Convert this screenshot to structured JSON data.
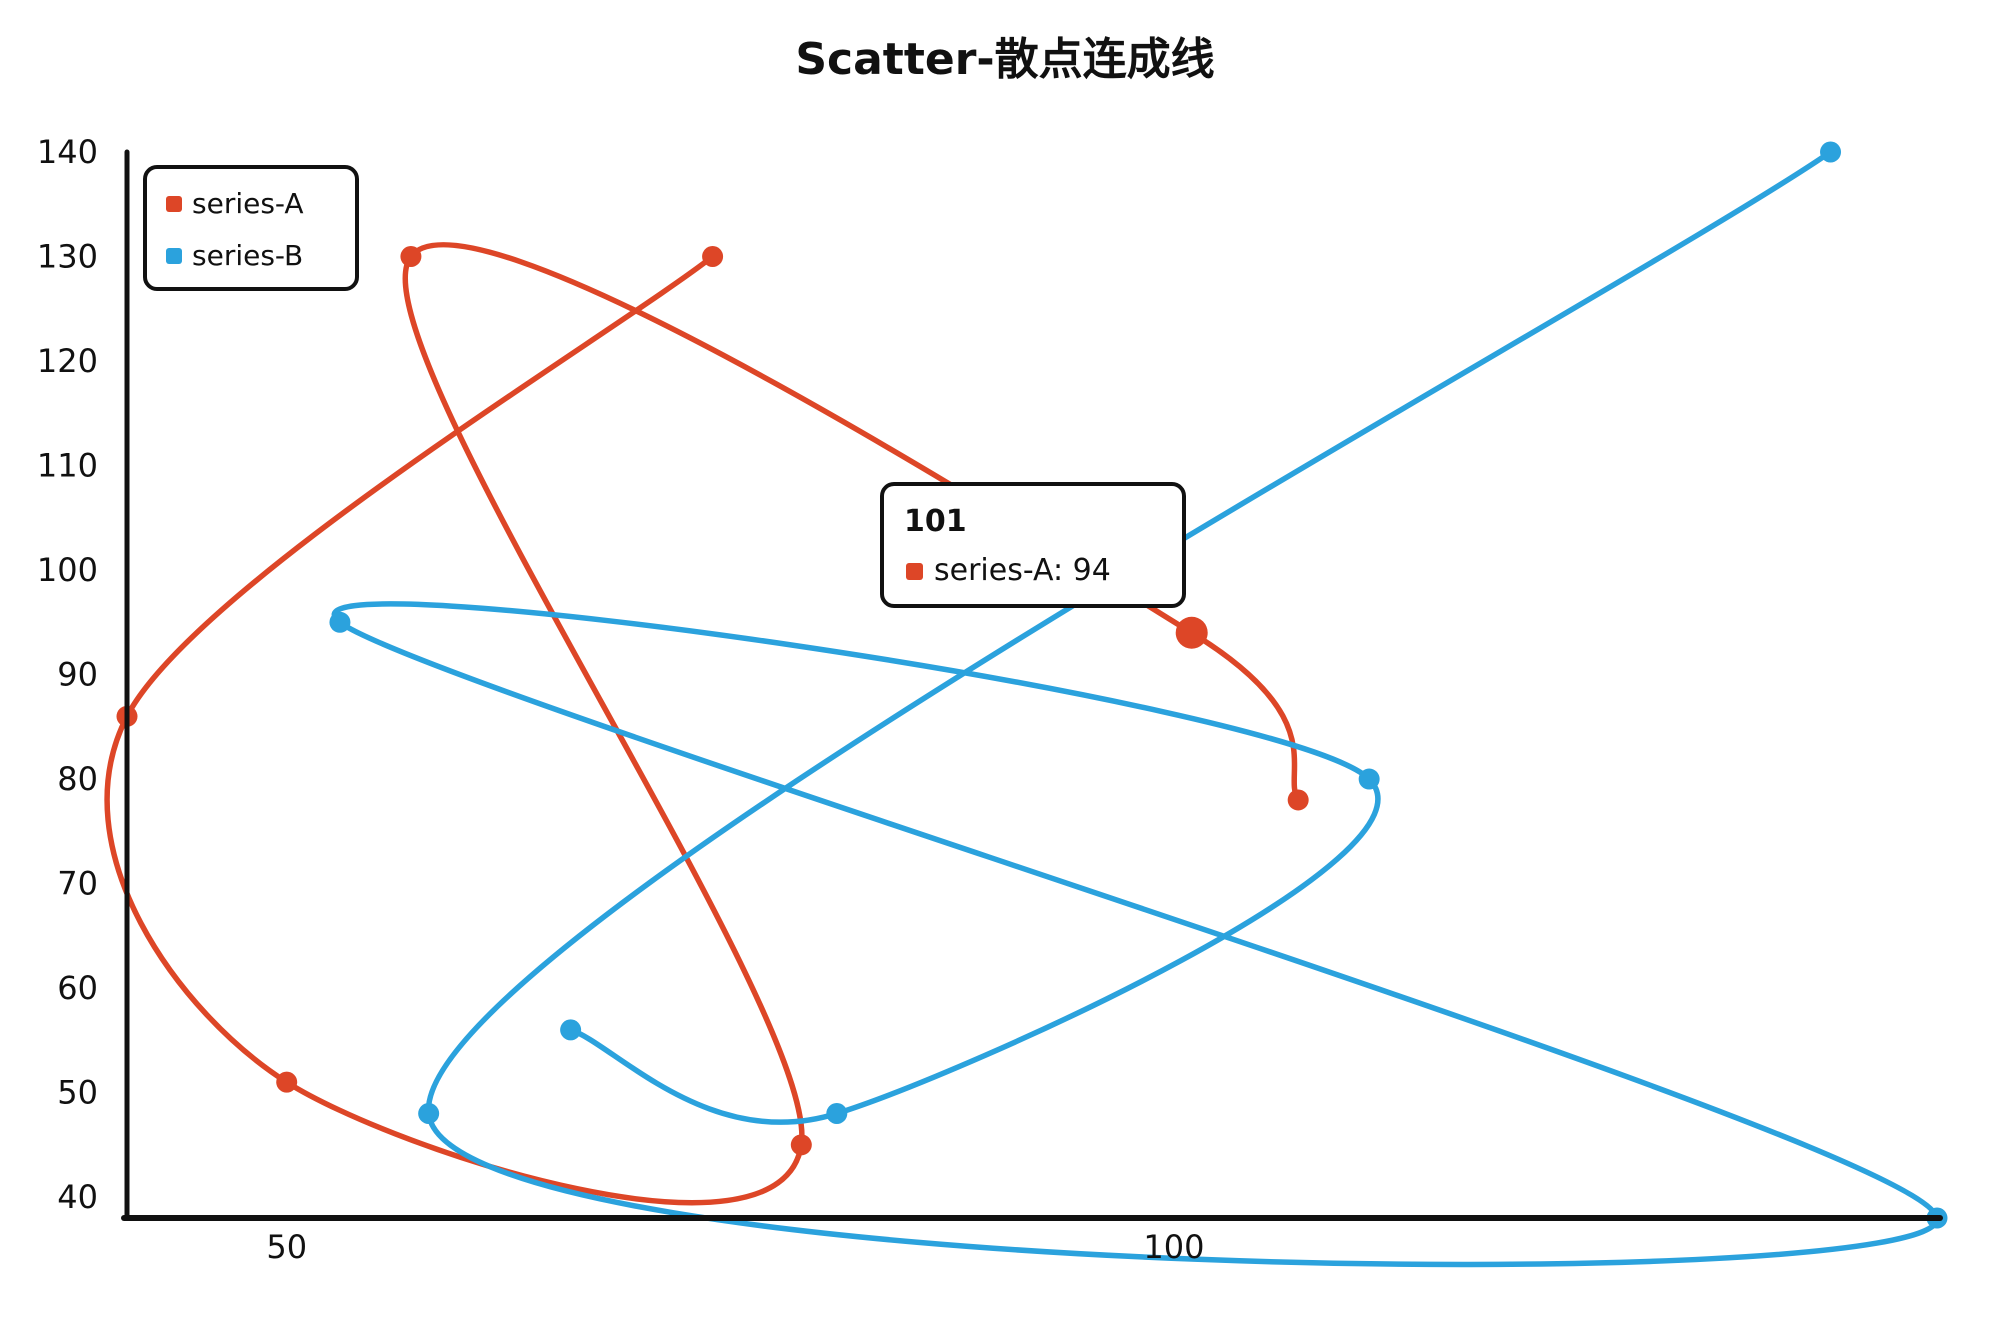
{
  "chart_data": {
    "type": "scatter",
    "title": "Scatter-散点连成线",
    "xlabel": "",
    "ylabel": "",
    "xlim": [
      41,
      143
    ],
    "ylim": [
      38,
      140
    ],
    "x_ticks": [
      50,
      100
    ],
    "y_ticks": [
      40,
      50,
      60,
      70,
      80,
      90,
      100,
      110,
      120,
      130,
      140
    ],
    "grid": false,
    "legend_position": "top-left",
    "series": [
      {
        "name": "series-A",
        "color": "#dd4627",
        "points": [
          [
            74,
            130
          ],
          [
            41,
            86
          ],
          [
            50,
            51
          ],
          [
            79,
            45
          ],
          [
            57,
            130
          ],
          [
            101,
            94
          ],
          [
            107,
            78
          ]
        ]
      },
      {
        "name": "series-B",
        "color": "#2ba2dd",
        "points": [
          [
            137,
            140
          ],
          [
            58,
            48
          ],
          [
            143,
            38
          ],
          [
            53,
            95
          ],
          [
            111,
            80
          ],
          [
            81,
            48
          ],
          [
            66,
            56
          ]
        ]
      }
    ],
    "tooltip": {
      "title": "101",
      "series": "series-A",
      "value": "94"
    }
  }
}
